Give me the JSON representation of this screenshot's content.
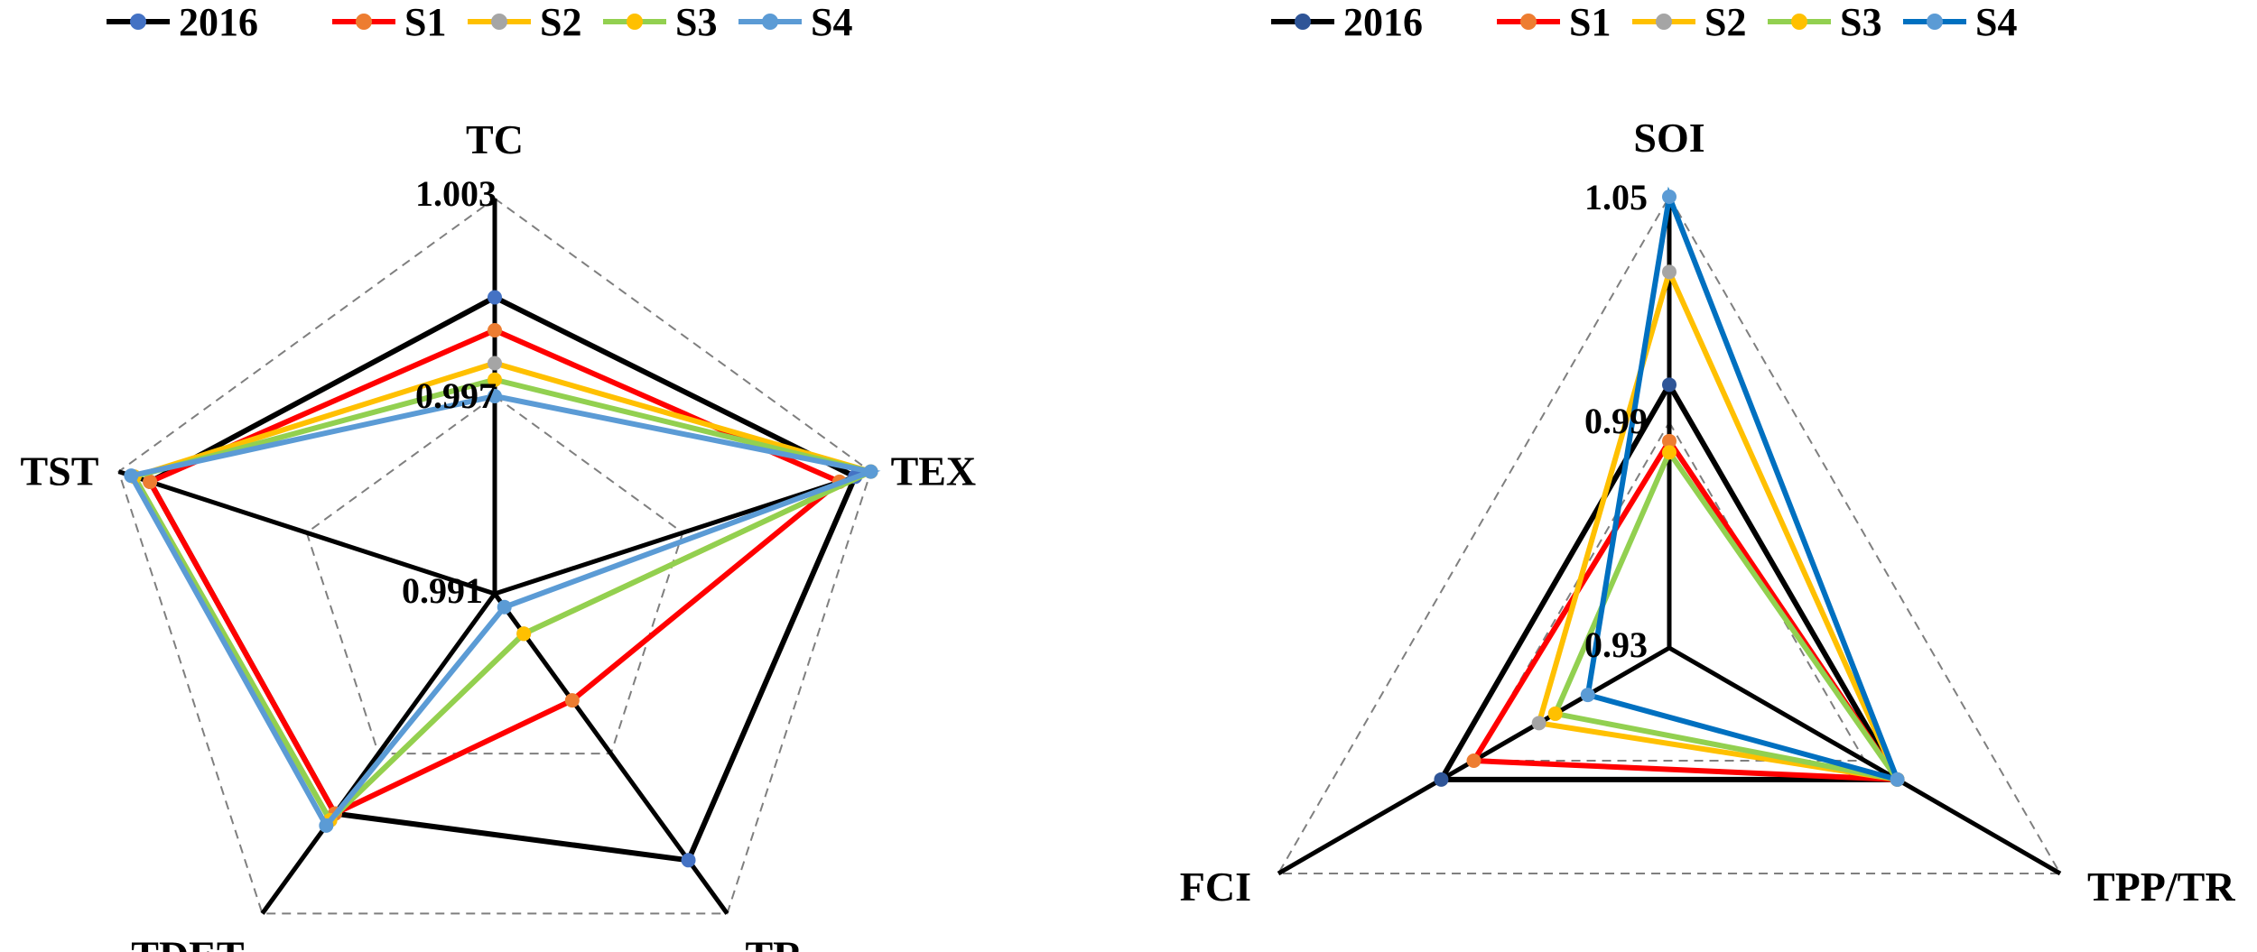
{
  "chart_data": [
    {
      "type": "radar",
      "title": "",
      "axes": [
        "TC",
        "TEX",
        "TR",
        "TDET",
        "TST"
      ],
      "range": [
        0.991,
        1.003
      ],
      "tick_labels": [
        "1.003",
        "0.997",
        "0.991"
      ],
      "legend_position": "top-left",
      "series": [
        {
          "name": "2016",
          "color": "#000000",
          "marker_color": "#4472C4",
          "values": [
            1.0,
            1.0025,
            1.001,
            0.99925,
            1.002
          ]
        },
        {
          "name": "S1",
          "color": "#FF0000",
          "marker_color": "#ED7D31",
          "values": [
            0.999,
            1.002,
            0.995,
            0.99925,
            1.002
          ]
        },
        {
          "name": "S2",
          "color": "#FFC000",
          "marker_color": "#A5A5A5",
          "values": [
            0.998,
            1.003,
            0.9925,
            0.9995,
            1.0025
          ]
        },
        {
          "name": "S3",
          "color": "#92D050",
          "marker_color": "#FFC000",
          "values": [
            0.9975,
            1.003,
            0.9925,
            0.9995,
            1.0025
          ]
        },
        {
          "name": "S4",
          "color": "#5B9BD5",
          "marker_color": "#5B9BD5",
          "values": [
            0.997,
            1.003,
            0.9915,
            0.9997,
            1.0026
          ]
        }
      ]
    },
    {
      "type": "radar",
      "title": "",
      "axes": [
        "SOI",
        "TPP/TR",
        "FCI"
      ],
      "range": [
        0.93,
        1.05
      ],
      "tick_labels": [
        "1.05",
        "0.99",
        "0.93"
      ],
      "legend_position": "top-left",
      "series": [
        {
          "name": "2016",
          "color": "#000000",
          "marker_color": "#2F5597",
          "values": [
            1.0,
            1.0,
            1.0
          ]
        },
        {
          "name": "S1",
          "color": "#FF0000",
          "marker_color": "#ED7D31",
          "values": [
            0.985,
            1.0,
            0.99
          ]
        },
        {
          "name": "S2",
          "color": "#FFC000",
          "marker_color": "#A5A5A5",
          "values": [
            1.03,
            1.0,
            0.97
          ]
        },
        {
          "name": "S3",
          "color": "#92D050",
          "marker_color": "#FFC000",
          "values": [
            0.982,
            1.0,
            0.965
          ]
        },
        {
          "name": "S4",
          "color": "#0070C0",
          "marker_color": "#5B9BD5",
          "values": [
            1.05,
            1.0,
            0.955
          ]
        }
      ]
    }
  ]
}
